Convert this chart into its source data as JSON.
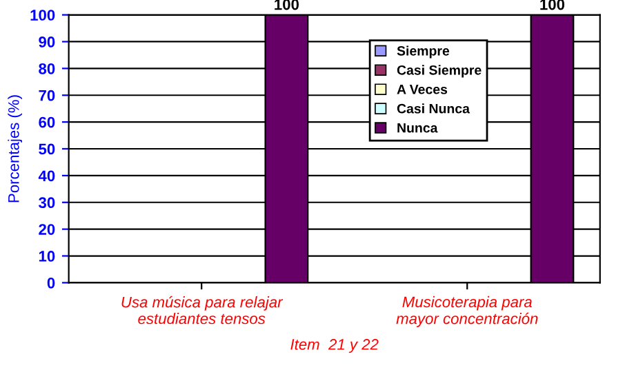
{
  "chart_data": {
    "type": "bar",
    "xlabel": "Item  21 y 22",
    "ylabel": "Porcentajes (%)",
    "categories": [
      "Usa música para relajar estudiantes tensos",
      "Musicoterapia para mayor concentración"
    ],
    "series": [
      {
        "name": "Siempre",
        "color": "#9999ff",
        "values": [
          0,
          0
        ]
      },
      {
        "name": "Casi Siempre",
        "color": "#993366",
        "values": [
          0,
          0
        ]
      },
      {
        "name": "A Veces",
        "color": "#ffffcc",
        "values": [
          0,
          0
        ]
      },
      {
        "name": "Casi Nunca",
        "color": "#ccffff",
        "values": [
          0,
          0
        ]
      },
      {
        "name": "Nunca",
        "color": "#660066",
        "values": [
          100,
          100
        ],
        "value_labels": [
          "100",
          "100"
        ]
      }
    ],
    "ylim": [
      0,
      100
    ],
    "yticks": [
      0,
      10,
      20,
      30,
      40,
      50,
      60,
      70,
      80,
      90,
      100
    ],
    "grid": "y",
    "legend": "top right"
  }
}
